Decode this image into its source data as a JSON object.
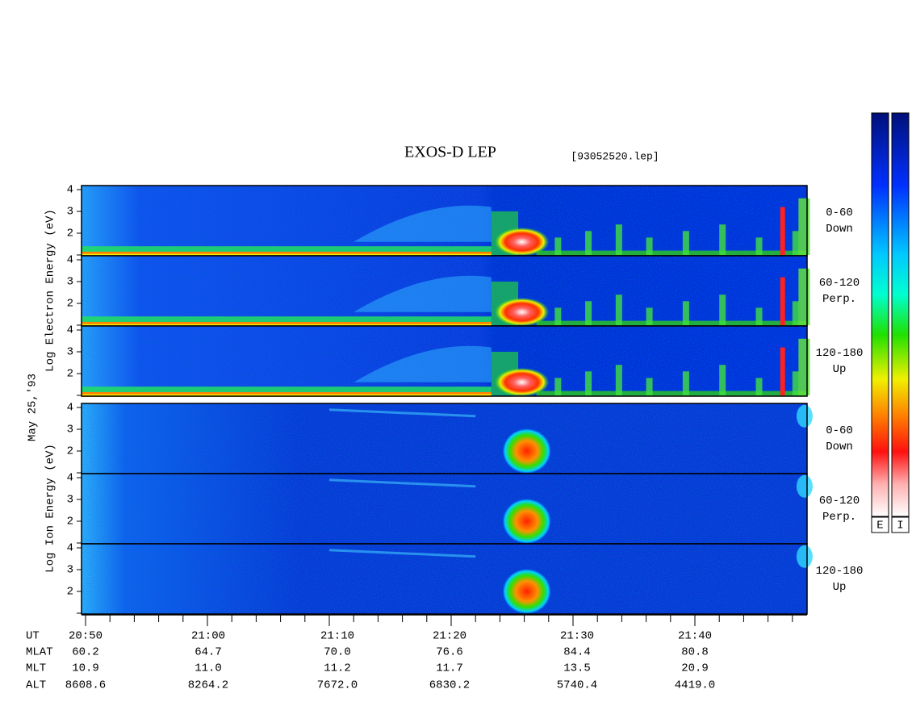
{
  "header": {
    "title": "EXOS-D LEP",
    "file": "[93052520.lep]"
  },
  "date": "May 25,'93",
  "electron": {
    "label": "Log Electron Energy (eV)",
    "panels": [
      {
        "angle": "0-60",
        "direction": "Down"
      },
      {
        "angle": "60-120",
        "direction": "Perp."
      },
      {
        "angle": "120-180",
        "direction": "Up"
      }
    ]
  },
  "ion": {
    "label": "Log Ion Energy (eV)",
    "panels": [
      {
        "angle": "0-60",
        "direction": "Down"
      },
      {
        "angle": "60-120",
        "direction": "Perp."
      },
      {
        "angle": "120-180",
        "direction": "Up"
      }
    ]
  },
  "yticks": [
    "2",
    "3",
    "4"
  ],
  "colorbars": [
    "E",
    "I"
  ],
  "orbit": {
    "rows": [
      [
        "UT",
        "20:50",
        "21:00",
        "21:10",
        "21:20",
        "21:30",
        "21:40"
      ],
      [
        "MLAT",
        "60.2",
        "64.7",
        "70.0",
        "76.6",
        "84.4",
        "80.8"
      ],
      [
        "MLT",
        "10.9",
        "11.0",
        "11.2",
        "11.7",
        "13.5",
        "20.9"
      ],
      [
        "ALT",
        "8608.6",
        "8264.2",
        "7672.0",
        "6830.2",
        "5740.4",
        "4419.0"
      ]
    ]
  }
}
